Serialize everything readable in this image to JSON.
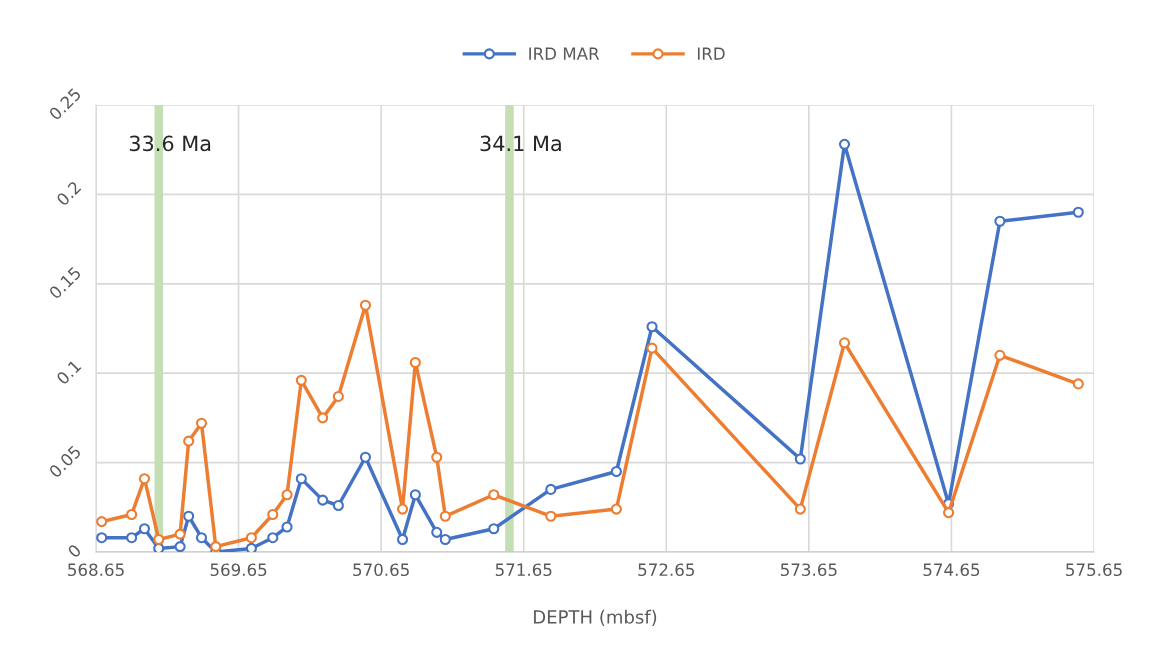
{
  "chart_data": {
    "type": "line",
    "xlabel": "DEPTH (mbsf)",
    "x": [
      568.69,
      568.9,
      568.99,
      569.09,
      569.24,
      569.3,
      569.39,
      569.49,
      569.74,
      569.89,
      569.99,
      570.09,
      570.24,
      570.35,
      570.54,
      570.8,
      570.89,
      571.04,
      571.1,
      571.44,
      571.84,
      572.3,
      572.55,
      573.59,
      573.9,
      574.63,
      574.99,
      575.54
    ],
    "series": [
      {
        "name": "IRD MAR",
        "color": "#4472c4",
        "values": [
          0.008,
          0.008,
          0.013,
          0.002,
          0.003,
          0.02,
          0.008,
          0.0,
          0.002,
          0.008,
          0.014,
          0.041,
          0.029,
          0.026,
          0.053,
          0.007,
          0.032,
          0.011,
          0.007,
          0.013,
          0.035,
          0.045,
          0.126,
          0.052,
          0.228,
          0.027,
          0.185,
          0.19
        ]
      },
      {
        "name": "IRD",
        "color": "#ed7d31",
        "values": [
          0.017,
          0.021,
          0.041,
          0.007,
          0.01,
          0.062,
          0.072,
          0.003,
          0.008,
          0.021,
          0.032,
          0.096,
          0.075,
          0.087,
          0.138,
          0.024,
          0.106,
          0.053,
          0.02,
          0.032,
          0.02,
          0.024,
          0.114,
          0.024,
          0.117,
          0.022,
          0.11,
          0.094
        ]
      }
    ],
    "bands": [
      {
        "axis": "x",
        "from": 569.06,
        "to": 569.12,
        "label": "33.6 Ma",
        "color": "#c5dfb4"
      },
      {
        "axis": "x",
        "from": 571.52,
        "to": 571.58,
        "label": "34.1 Ma",
        "color": "#c5dfb4"
      }
    ],
    "xlim": [
      568.65,
      575.65
    ],
    "xticks": [
      568.65,
      569.65,
      570.65,
      571.65,
      572.65,
      573.65,
      574.65,
      575.65
    ],
    "ylim": [
      0,
      0.25
    ],
    "yticks": [
      0,
      0.05,
      0.1,
      0.15,
      0.2,
      0.25
    ],
    "grid": true,
    "legend": "top",
    "marker": "circle",
    "line_style": "solid"
  }
}
